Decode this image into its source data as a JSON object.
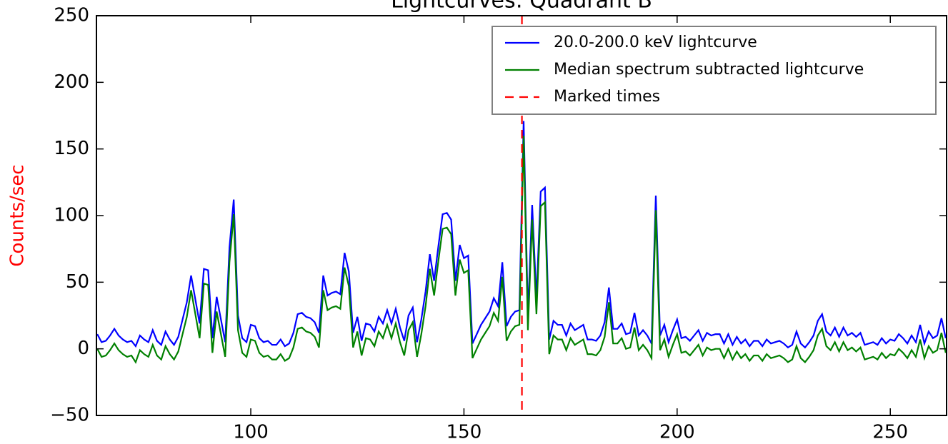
{
  "chart_data": {
    "type": "line",
    "title": "Lightcurves: Quadrant B",
    "ylabel": "Counts/sec",
    "ylabel_color": "#ff0000",
    "x": [
      64,
      65,
      66,
      67,
      68,
      69,
      70,
      71,
      72,
      73,
      74,
      75,
      76,
      77,
      78,
      79,
      80,
      81,
      82,
      83,
      84,
      85,
      86,
      87,
      88,
      89,
      90,
      91,
      92,
      93,
      94,
      95,
      96,
      97,
      98,
      99,
      100,
      101,
      102,
      103,
      104,
      105,
      106,
      107,
      108,
      109,
      110,
      111,
      112,
      113,
      114,
      115,
      116,
      117,
      118,
      119,
      120,
      121,
      122,
      123,
      124,
      125,
      126,
      127,
      128,
      129,
      130,
      131,
      132,
      133,
      134,
      135,
      136,
      137,
      138,
      139,
      140,
      141,
      142,
      143,
      144,
      145,
      146,
      147,
      148,
      149,
      150,
      151,
      152,
      153,
      154,
      155,
      156,
      157,
      158,
      159,
      160,
      161,
      162,
      163,
      164,
      165,
      166,
      167,
      168,
      169,
      170,
      171,
      172,
      173,
      174,
      175,
      176,
      177,
      178,
      179,
      180,
      181,
      182,
      183,
      184,
      185,
      186,
      187,
      188,
      189,
      190,
      191,
      192,
      193,
      194,
      195,
      196,
      197,
      198,
      199,
      200,
      201,
      202,
      203,
      204,
      205,
      206,
      207,
      208,
      209,
      210,
      211,
      212,
      213,
      214,
      215,
      216,
      217,
      218,
      219,
      220,
      221,
      222,
      223,
      224,
      225,
      226,
      227,
      228,
      229,
      230,
      231,
      232,
      233,
      234,
      235,
      236,
      237,
      238,
      239,
      240,
      241,
      242,
      243,
      244,
      245,
      246,
      247,
      248,
      249,
      250,
      251,
      252,
      253,
      254,
      255,
      256,
      257,
      258,
      259,
      260,
      261,
      262,
      263
    ],
    "series": [
      {
        "name": "20.0-200.0 keV lightcurve",
        "color": "#0000ff",
        "values": [
          11,
          5,
          6,
          10,
          15,
          10,
          7,
          5,
          6,
          2,
          10,
          7,
          5,
          14,
          6,
          3,
          13,
          7,
          3,
          9,
          22,
          35,
          55,
          37,
          19,
          60,
          59,
          8,
          39,
          22,
          5,
          76,
          112,
          25,
          8,
          5,
          18,
          17,
          8,
          5,
          6,
          3,
          3,
          7,
          2,
          4,
          12,
          26,
          27,
          24,
          23,
          20,
          12,
          55,
          40,
          42,
          43,
          41,
          72,
          58,
          12,
          24,
          6,
          19,
          18,
          13,
          24,
          19,
          29,
          19,
          30,
          16,
          6,
          25,
          31,
          5,
          22,
          43,
          71,
          51,
          77,
          101,
          102,
          97,
          51,
          78,
          68,
          70,
          4,
          11,
          18,
          23,
          28,
          38,
          32,
          65,
          17,
          24,
          28,
          29,
          171,
          25,
          108,
          37,
          118,
          121,
          7,
          21,
          18,
          18,
          10,
          19,
          14,
          16,
          18,
          7,
          7,
          6,
          10,
          20,
          46,
          15,
          15,
          19,
          11,
          12,
          27,
          10,
          14,
          10,
          4,
          115,
          10,
          18,
          5,
          14,
          22,
          8,
          9,
          6,
          10,
          14,
          6,
          12,
          10,
          11,
          11,
          4,
          11,
          3,
          9,
          4,
          7,
          2,
          6,
          6,
          2,
          7,
          4,
          5,
          6,
          4,
          1,
          3,
          13,
          4,
          1,
          5,
          10,
          21,
          26,
          13,
          10,
          16,
          9,
          16,
          10,
          12,
          9,
          12,
          3,
          4,
          5,
          3,
          8,
          4,
          7,
          6,
          11,
          8,
          4,
          10,
          5,
          18,
          4,
          13,
          8,
          10,
          23,
          8
        ]
      },
      {
        "name": "Median spectrum subtracted lightcurve",
        "color": "#008000",
        "values": [
          0,
          -6,
          -5,
          -1,
          4,
          -1,
          -4,
          -6,
          -5,
          -10,
          -1,
          -4,
          -6,
          3,
          -5,
          -8,
          2,
          -4,
          -8,
          -2,
          11,
          24,
          44,
          26,
          8,
          49,
          48,
          -3,
          28,
          11,
          -6,
          65,
          101,
          14,
          -3,
          -6,
          7,
          6,
          -3,
          -6,
          -5,
          -8,
          -8,
          -4,
          -9,
          -7,
          1,
          15,
          16,
          13,
          12,
          9,
          1,
          44,
          29,
          31,
          32,
          30,
          61,
          47,
          1,
          13,
          -5,
          8,
          7,
          2,
          13,
          8,
          18,
          8,
          19,
          5,
          -5,
          14,
          20,
          -6,
          11,
          32,
          60,
          40,
          66,
          90,
          91,
          86,
          40,
          67,
          57,
          59,
          -7,
          0,
          7,
          12,
          17,
          27,
          21,
          54,
          6,
          13,
          17,
          18,
          160,
          14,
          97,
          26,
          107,
          110,
          -4,
          10,
          7,
          7,
          -1,
          8,
          3,
          5,
          7,
          -4,
          -4,
          -5,
          -1,
          9,
          35,
          4,
          4,
          8,
          0,
          1,
          16,
          -1,
          3,
          -1,
          -7,
          104,
          -1,
          7,
          -6,
          3,
          11,
          -3,
          -2,
          -5,
          -1,
          3,
          -5,
          1,
          -1,
          0,
          0,
          -7,
          0,
          -8,
          -2,
          -7,
          -4,
          -9,
          -5,
          -5,
          -9,
          -4,
          -7,
          -6,
          -5,
          -7,
          -10,
          -8,
          2,
          -7,
          -10,
          -6,
          -1,
          10,
          15,
          2,
          -1,
          5,
          -2,
          5,
          -1,
          1,
          -2,
          1,
          -8,
          -7,
          -6,
          -8,
          -3,
          -7,
          -4,
          -5,
          0,
          -3,
          -7,
          -1,
          -6,
          7,
          -7,
          2,
          -3,
          -1,
          12,
          -3
        ]
      }
    ],
    "vlines": {
      "name": "Marked times",
      "color": "#ff0000",
      "x": [
        163.6
      ]
    },
    "xlim": [
      63.8,
      263.2
    ],
    "ylim": [
      -50,
      250
    ],
    "xticks": [
      100,
      150,
      200,
      250
    ],
    "yticks": [
      {
        "value": -50,
        "label": "−50"
      },
      0,
      50,
      100,
      150,
      200,
      250
    ],
    "legend": "upper right"
  }
}
